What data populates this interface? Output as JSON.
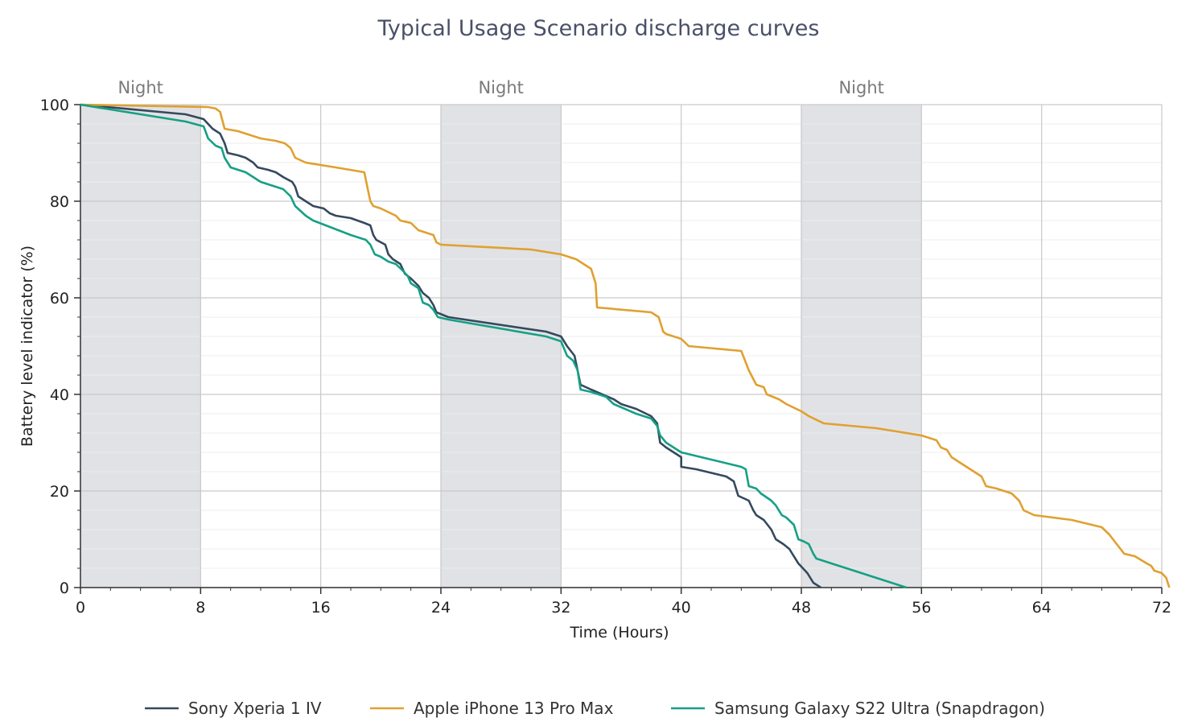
{
  "chart_data": {
    "type": "line",
    "title": "Typical Usage Scenario discharge curves",
    "xlabel": "Time (Hours)",
    "ylabel": "Battery level indicator (%)",
    "xlim": [
      0,
      72
    ],
    "ylim": [
      0,
      100
    ],
    "x_ticks": [
      "0",
      "8",
      "16",
      "24",
      "32",
      "40",
      "48",
      "56",
      "64",
      "72"
    ],
    "y_ticks": [
      "0",
      "20",
      "40",
      "60",
      "80",
      "100"
    ],
    "grid": true,
    "legend_position": "bottom",
    "night_bands": [
      {
        "label": "Night",
        "x_start": 0,
        "x_end": 8
      },
      {
        "label": "Night",
        "x_start": 24,
        "x_end": 32
      },
      {
        "label": "Night",
        "x_start": 48,
        "x_end": 56
      }
    ],
    "series": [
      {
        "name": "Sony Xperia 1 IV",
        "color": "#34495e",
        "points": [
          [
            0,
            100
          ],
          [
            7,
            98
          ],
          [
            8.2,
            97
          ],
          [
            8.8,
            95
          ],
          [
            9.3,
            94
          ],
          [
            9.6,
            92
          ],
          [
            9.8,
            90
          ],
          [
            10.5,
            89.5
          ],
          [
            11,
            89
          ],
          [
            11.5,
            88
          ],
          [
            11.8,
            87
          ],
          [
            12.5,
            86.5
          ],
          [
            13,
            86
          ],
          [
            13.5,
            85
          ],
          [
            13.8,
            84.5
          ],
          [
            14.1,
            84
          ],
          [
            14.3,
            83
          ],
          [
            14.5,
            81
          ],
          [
            15,
            80
          ],
          [
            15.5,
            79
          ],
          [
            16.2,
            78.5
          ],
          [
            16.6,
            77.5
          ],
          [
            17,
            77
          ],
          [
            18,
            76.5
          ],
          [
            18.9,
            75.5
          ],
          [
            19.3,
            75
          ],
          [
            19.5,
            73
          ],
          [
            19.7,
            72
          ],
          [
            20.3,
            71
          ],
          [
            20.5,
            69
          ],
          [
            20.8,
            68
          ],
          [
            21.3,
            67
          ],
          [
            21.6,
            65
          ],
          [
            22,
            64
          ],
          [
            22.5,
            62.5
          ],
          [
            22.8,
            61
          ],
          [
            23.2,
            60
          ],
          [
            23.5,
            58.5
          ],
          [
            23.7,
            57
          ],
          [
            24.5,
            56
          ],
          [
            31,
            53
          ],
          [
            32,
            52
          ],
          [
            32.4,
            50
          ],
          [
            32.9,
            48
          ],
          [
            33.3,
            42
          ],
          [
            34,
            41
          ],
          [
            35.5,
            39
          ],
          [
            36,
            38
          ],
          [
            37,
            37
          ],
          [
            38,
            35.5
          ],
          [
            38.4,
            34
          ],
          [
            38.6,
            30
          ],
          [
            39,
            29
          ],
          [
            40,
            27
          ],
          [
            40,
            25
          ],
          [
            41,
            24.5
          ],
          [
            43,
            23
          ],
          [
            43.5,
            22
          ],
          [
            43.8,
            19
          ],
          [
            44.5,
            18
          ],
          [
            44.8,
            16
          ],
          [
            45,
            15
          ],
          [
            45.5,
            14
          ],
          [
            46,
            12
          ],
          [
            46.3,
            10
          ],
          [
            46.8,
            9
          ],
          [
            47.2,
            8
          ],
          [
            47.4,
            7
          ],
          [
            47.8,
            5
          ],
          [
            48.4,
            3
          ],
          [
            48.8,
            1
          ],
          [
            49.3,
            0
          ]
        ]
      },
      {
        "name": "Apple iPhone 13 Pro Max",
        "color": "#e0a030",
        "points": [
          [
            0,
            100
          ],
          [
            8.5,
            99.5
          ],
          [
            9,
            99.2
          ],
          [
            9.3,
            98.5
          ],
          [
            9.6,
            95
          ],
          [
            10.5,
            94.5
          ],
          [
            11,
            94
          ],
          [
            12,
            93
          ],
          [
            13,
            92.5
          ],
          [
            13.6,
            92
          ],
          [
            14,
            91
          ],
          [
            14.3,
            89
          ],
          [
            15,
            88
          ],
          [
            17,
            87
          ],
          [
            18.9,
            86
          ],
          [
            19.1,
            83
          ],
          [
            19.3,
            80
          ],
          [
            19.5,
            79
          ],
          [
            20,
            78.5
          ],
          [
            21,
            77
          ],
          [
            21.3,
            76
          ],
          [
            22,
            75.5
          ],
          [
            22.5,
            74
          ],
          [
            23,
            73.5
          ],
          [
            23.5,
            73
          ],
          [
            23.7,
            71.5
          ],
          [
            24,
            71
          ],
          [
            30,
            70
          ],
          [
            32,
            69
          ],
          [
            33,
            68
          ],
          [
            34,
            66
          ],
          [
            34.3,
            63
          ],
          [
            34.4,
            58
          ],
          [
            38,
            57
          ],
          [
            38.5,
            56
          ],
          [
            38.8,
            53
          ],
          [
            39,
            52.5
          ],
          [
            40,
            51.5
          ],
          [
            40.5,
            50
          ],
          [
            44,
            49
          ],
          [
            44.5,
            45
          ],
          [
            45,
            42
          ],
          [
            45.5,
            41.5
          ],
          [
            45.7,
            40
          ],
          [
            46.5,
            39
          ],
          [
            47,
            38
          ],
          [
            48,
            36.5
          ],
          [
            48.5,
            35.5
          ],
          [
            49.5,
            34
          ],
          [
            53,
            33
          ],
          [
            56,
            31.5
          ],
          [
            57,
            30.5
          ],
          [
            57.3,
            29
          ],
          [
            57.7,
            28.5
          ],
          [
            58,
            27
          ],
          [
            59,
            25
          ],
          [
            60,
            23
          ],
          [
            60.3,
            21
          ],
          [
            61,
            20.5
          ],
          [
            62,
            19.5
          ],
          [
            62.5,
            18
          ],
          [
            62.8,
            16
          ],
          [
            63.5,
            15
          ],
          [
            66,
            14
          ],
          [
            68,
            12.5
          ],
          [
            68.5,
            11
          ],
          [
            69,
            9
          ],
          [
            69.5,
            7
          ],
          [
            70.2,
            6.5
          ],
          [
            71,
            5
          ],
          [
            71.3,
            4.5
          ],
          [
            71.5,
            3.5
          ],
          [
            72,
            3
          ],
          [
            72.3,
            2
          ],
          [
            72.5,
            0
          ]
        ]
      },
      {
        "name": "Samsung Galaxy S22 Ultra (Snapdragon)",
        "color": "#16a085",
        "points": [
          [
            0,
            100
          ],
          [
            7,
            96.5
          ],
          [
            8.2,
            95.5
          ],
          [
            8.5,
            93
          ],
          [
            9,
            91.5
          ],
          [
            9.4,
            91
          ],
          [
            9.6,
            89
          ],
          [
            10,
            87
          ],
          [
            11,
            86
          ],
          [
            11.5,
            85
          ],
          [
            12,
            84
          ],
          [
            13,
            83
          ],
          [
            13.5,
            82.5
          ],
          [
            14,
            81
          ],
          [
            14.3,
            79
          ],
          [
            15,
            77
          ],
          [
            15.5,
            76
          ],
          [
            18,
            73
          ],
          [
            19,
            72
          ],
          [
            19.3,
            71
          ],
          [
            19.6,
            69
          ],
          [
            20,
            68.5
          ],
          [
            20.5,
            67.5
          ],
          [
            21,
            67
          ],
          [
            21.5,
            65.5
          ],
          [
            21.8,
            64.5
          ],
          [
            22,
            63
          ],
          [
            22.5,
            62
          ],
          [
            22.8,
            59
          ],
          [
            23.2,
            58.5
          ],
          [
            23.5,
            57.5
          ],
          [
            23.8,
            56
          ],
          [
            24.5,
            55.5
          ],
          [
            31,
            52
          ],
          [
            32,
            51
          ],
          [
            32.4,
            48
          ],
          [
            32.8,
            47
          ],
          [
            33.1,
            45
          ],
          [
            33.3,
            41
          ],
          [
            34,
            40.5
          ],
          [
            35,
            39.5
          ],
          [
            35.5,
            38
          ],
          [
            37,
            36
          ],
          [
            38,
            35
          ],
          [
            38.4,
            33.5
          ],
          [
            38.6,
            31.5
          ],
          [
            39,
            30
          ],
          [
            40,
            28
          ],
          [
            44,
            25
          ],
          [
            44.3,
            24.5
          ],
          [
            44.5,
            21
          ],
          [
            45,
            20.5
          ],
          [
            45.3,
            19.5
          ],
          [
            46,
            18
          ],
          [
            46.3,
            17
          ],
          [
            46.7,
            15
          ],
          [
            47,
            14.5
          ],
          [
            47.5,
            13
          ],
          [
            47.8,
            10
          ],
          [
            48.2,
            9.5
          ],
          [
            48.5,
            9
          ],
          [
            48.8,
            7
          ],
          [
            49,
            6
          ],
          [
            50,
            5
          ],
          [
            51,
            4
          ],
          [
            52,
            3
          ],
          [
            53,
            2
          ],
          [
            54,
            1
          ],
          [
            55,
            0
          ]
        ]
      }
    ]
  }
}
